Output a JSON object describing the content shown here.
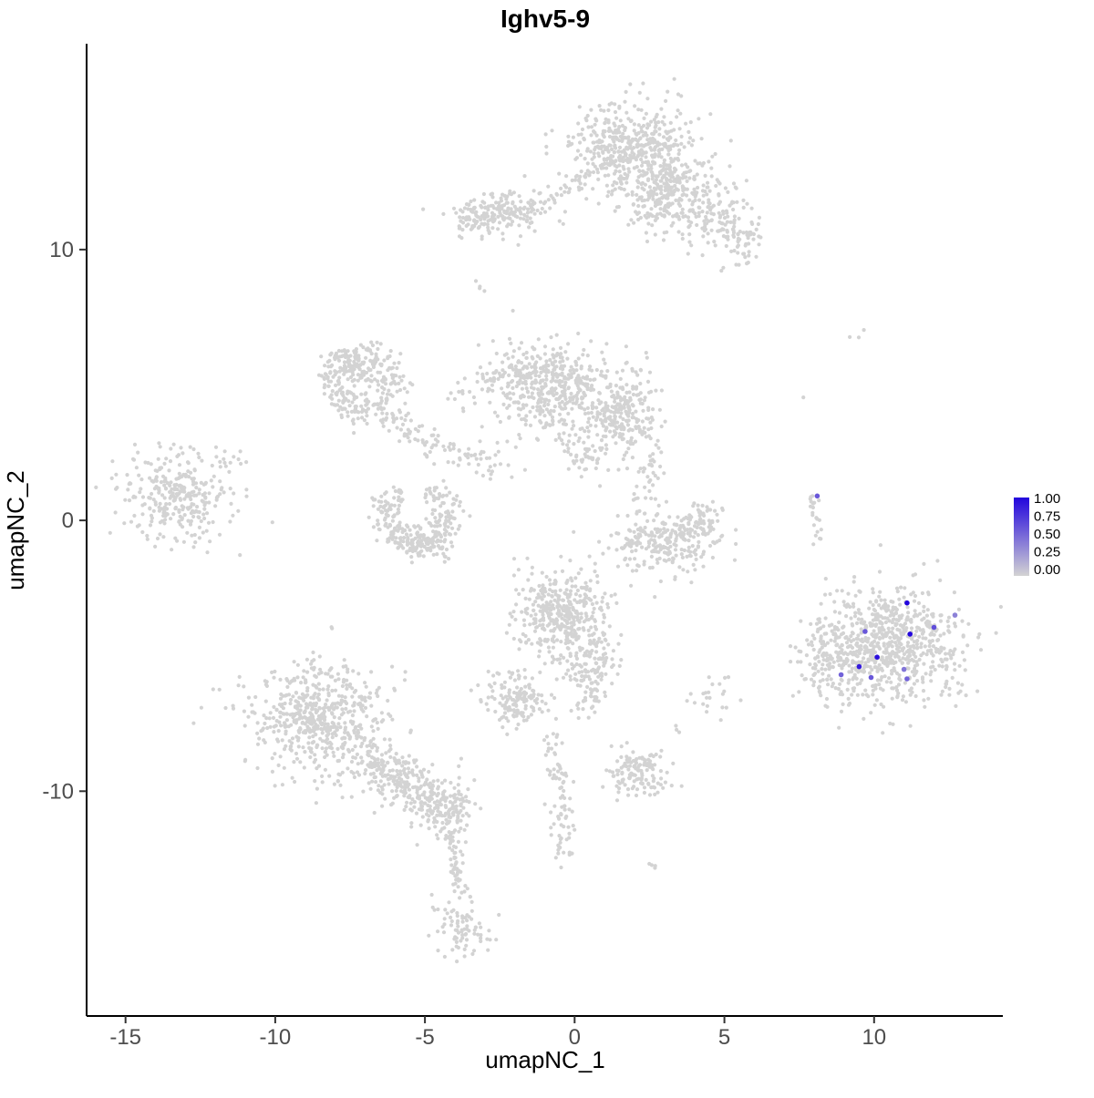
{
  "chart_data": {
    "type": "scatter",
    "title": "Ighv5-9",
    "xlabel": "umapNC_1",
    "ylabel": "umapNC_2",
    "xlim": [
      -16.3,
      14.3
    ],
    "ylim": [
      -18.3,
      17.6
    ],
    "x_ticks": [
      -15,
      -10,
      -5,
      0,
      5,
      10
    ],
    "y_ticks": [
      -10,
      0,
      10
    ],
    "grid": false,
    "point_color_low": "#D3D3D3",
    "point_color_high": "#2205DD",
    "legend": {
      "position": "right",
      "labels": [
        "1.00",
        "0.75",
        "0.50",
        "0.25",
        "0.00"
      ],
      "values": [
        1.0,
        0.75,
        0.5,
        0.25,
        0.0
      ]
    },
    "background_clusters": [
      {
        "type": "blob",
        "cx": 1.9,
        "cy": 13.7,
        "sx": 1.0,
        "sy": 0.85,
        "n": 520
      },
      {
        "type": "blob",
        "cx": 3.3,
        "cy": 12.3,
        "sx": 0.55,
        "sy": 0.6,
        "n": 130
      },
      {
        "type": "blob",
        "cx": 4.6,
        "cy": 11.4,
        "sx": 0.6,
        "sy": 0.7,
        "n": 130
      },
      {
        "type": "blob",
        "cx": 5.5,
        "cy": 10.3,
        "sx": 0.4,
        "sy": 0.45,
        "n": 60
      },
      {
        "type": "blob",
        "cx": 2.6,
        "cy": 11.5,
        "sx": 0.45,
        "sy": 0.55,
        "n": 70
      },
      {
        "type": "blob",
        "cx": -2.4,
        "cy": 11.4,
        "sx": 0.75,
        "sy": 0.4,
        "n": 170
      },
      {
        "type": "blob",
        "cx": -3.4,
        "cy": 11.1,
        "sx": 0.3,
        "sy": 0.3,
        "n": 40
      },
      {
        "type": "line",
        "x1": -1.5,
        "y1": 11.5,
        "x2": 0.8,
        "y2": 12.8,
        "spread": 0.15,
        "n": 35
      },
      {
        "type": "blob",
        "cx": -3.1,
        "cy": 8.6,
        "sx": 0.12,
        "sy": 0.12,
        "n": 4
      },
      {
        "type": "ring",
        "cx": -7.1,
        "cy": 5.1,
        "r": 1.05,
        "rs": 0.3,
        "a0": 0,
        "a1": 360,
        "n": 240
      },
      {
        "type": "blob",
        "cx": -7.4,
        "cy": 5.6,
        "sx": 0.5,
        "sy": 0.4,
        "n": 80
      },
      {
        "type": "line",
        "x1": -6.2,
        "y1": 3.9,
        "x2": -4.6,
        "y2": 2.7,
        "spread": 0.25,
        "n": 60
      },
      {
        "type": "line",
        "x1": -4.4,
        "y1": 2.6,
        "x2": -2.4,
        "y2": 2.1,
        "spread": 0.3,
        "n": 45
      },
      {
        "type": "blob",
        "cx": -0.8,
        "cy": 4.9,
        "sx": 0.95,
        "sy": 0.85,
        "n": 470
      },
      {
        "type": "blob",
        "cx": 1.7,
        "cy": 3.9,
        "sx": 0.6,
        "sy": 0.75,
        "n": 230
      },
      {
        "type": "line",
        "x1": -3.6,
        "y1": 4.8,
        "x2": -2.0,
        "y2": 5.0,
        "spread": 0.45,
        "n": 50
      },
      {
        "type": "blob",
        "cx": 0.3,
        "cy": 2.6,
        "sx": 0.5,
        "sy": 0.5,
        "n": 60
      },
      {
        "type": "blob",
        "cx": -13.3,
        "cy": 0.9,
        "sx": 0.95,
        "sy": 0.8,
        "n": 300
      },
      {
        "type": "blob",
        "cx": -11.7,
        "cy": 2.2,
        "sx": 0.3,
        "sy": 0.3,
        "n": 12
      },
      {
        "type": "ring",
        "cx": -5.3,
        "cy": 0.2,
        "r": 1.05,
        "rs": 0.28,
        "a0": 120,
        "a1": 430,
        "n": 240
      },
      {
        "type": "blob",
        "cx": -5.0,
        "cy": -0.9,
        "sx": 0.5,
        "sy": 0.3,
        "n": 70
      },
      {
        "type": "blob",
        "cx": 2.9,
        "cy": -0.8,
        "sx": 0.85,
        "sy": 0.5,
        "n": 240
      },
      {
        "type": "blob",
        "cx": 4.2,
        "cy": 0.0,
        "sx": 0.35,
        "sy": 0.35,
        "n": 60
      },
      {
        "type": "line",
        "x1": 2.0,
        "y1": 0.2,
        "x2": 2.7,
        "y2": 2.5,
        "spread": 0.3,
        "n": 35
      },
      {
        "type": "blob",
        "cx": -0.4,
        "cy": -3.5,
        "sx": 0.8,
        "sy": 0.85,
        "n": 400
      },
      {
        "type": "blob",
        "cx": 0.5,
        "cy": -5.4,
        "sx": 0.45,
        "sy": 0.6,
        "n": 100
      },
      {
        "type": "line",
        "x1": 0.6,
        "y1": -6.2,
        "x2": 0.2,
        "y2": -7.2,
        "spread": 0.2,
        "n": 25
      },
      {
        "type": "blob",
        "cx": -8.6,
        "cy": -7.2,
        "sx": 1.15,
        "sy": 1.0,
        "n": 560
      },
      {
        "type": "line",
        "x1": -7.2,
        "y1": -8.6,
        "x2": -4.8,
        "y2": -10.4,
        "spread": 0.5,
        "n": 260
      },
      {
        "type": "blob",
        "cx": -4.3,
        "cy": -10.7,
        "sx": 0.5,
        "sy": 0.5,
        "n": 130
      },
      {
        "type": "line",
        "x1": -4.1,
        "y1": -11.4,
        "x2": -3.8,
        "y2": -13.9,
        "spread": 0.15,
        "n": 55
      },
      {
        "type": "blob",
        "cx": -3.7,
        "cy": -15.2,
        "sx": 0.45,
        "sy": 0.55,
        "n": 80
      },
      {
        "type": "blob",
        "cx": -2.0,
        "cy": -6.6,
        "sx": 0.6,
        "sy": 0.5,
        "n": 140
      },
      {
        "type": "line",
        "x1": -0.7,
        "y1": -7.9,
        "x2": -0.3,
        "y2": -12.4,
        "spread": 0.22,
        "n": 85
      },
      {
        "type": "blob",
        "cx": 2.1,
        "cy": -9.3,
        "sx": 0.5,
        "sy": 0.45,
        "n": 130
      },
      {
        "type": "blob",
        "cx": 4.6,
        "cy": -6.6,
        "sx": 0.5,
        "sy": 0.4,
        "n": 22
      },
      {
        "type": "blob",
        "cx": 10.4,
        "cy": -4.6,
        "sx": 1.25,
        "sy": 1.05,
        "n": 750
      },
      {
        "type": "blob",
        "cx": 8.4,
        "cy": -5.0,
        "sx": 0.5,
        "sy": 0.8,
        "n": 90
      },
      {
        "type": "line",
        "x1": 7.95,
        "y1": 0.9,
        "x2": 8.15,
        "y2": -0.8,
        "spread": 0.12,
        "n": 22
      },
      {
        "type": "blob",
        "cx": 9.5,
        "cy": 6.9,
        "sx": 0.1,
        "sy": 0.1,
        "n": 3
      },
      {
        "type": "blob",
        "cx": 7.6,
        "cy": 4.6,
        "sx": 0.05,
        "sy": 0.05,
        "n": 1
      },
      {
        "type": "blob",
        "cx": 2.6,
        "cy": -12.7,
        "sx": 0.15,
        "sy": 0.15,
        "n": 4
      },
      {
        "type": "blob",
        "cx": 3.5,
        "cy": -7.6,
        "sx": 0.12,
        "sy": 0.12,
        "n": 3
      }
    ],
    "highlighted_cells": [
      {
        "x": 8.1,
        "y": 0.9,
        "value": 0.6
      },
      {
        "x": 11.1,
        "y": -3.05,
        "value": 1.0
      },
      {
        "x": 12.0,
        "y": -3.95,
        "value": 0.65
      },
      {
        "x": 11.2,
        "y": -4.2,
        "value": 1.0
      },
      {
        "x": 9.7,
        "y": -4.1,
        "value": 0.6
      },
      {
        "x": 10.1,
        "y": -5.05,
        "value": 0.95
      },
      {
        "x": 9.5,
        "y": -5.4,
        "value": 0.9
      },
      {
        "x": 8.9,
        "y": -5.7,
        "value": 0.55
      },
      {
        "x": 9.9,
        "y": -5.8,
        "value": 0.6
      },
      {
        "x": 11.0,
        "y": -5.5,
        "value": 0.45
      },
      {
        "x": 11.1,
        "y": -5.85,
        "value": 0.55
      },
      {
        "x": 12.7,
        "y": -3.5,
        "value": 0.4
      }
    ]
  }
}
